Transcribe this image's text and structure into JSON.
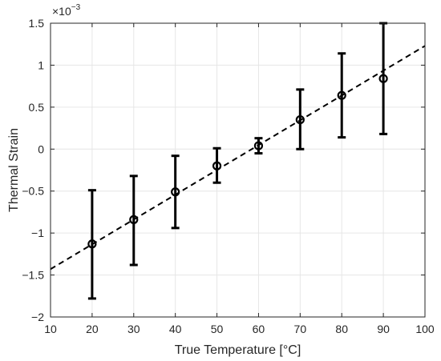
{
  "chart_data": {
    "type": "scatter",
    "xlabel": "True Temperature [°C]",
    "ylabel": "Thermal Strain",
    "y_exponent_label": {
      "base": "×10",
      "power": "−3"
    },
    "xlim": [
      10,
      100
    ],
    "ylim": [
      -2,
      1.5
    ],
    "xticks": [
      10,
      20,
      30,
      40,
      50,
      60,
      70,
      80,
      90,
      100
    ],
    "yticks": [
      -2,
      -1.5,
      -1,
      -0.5,
      0,
      0.5,
      1,
      1.5
    ],
    "ytick_labels": [
      "−2",
      "−1.5",
      "−1",
      "−0.5",
      "0",
      "0.5",
      "1",
      "1.5"
    ],
    "grid": true,
    "series": [
      {
        "marker": "circle",
        "x": [
          20,
          30,
          40,
          50,
          60,
          70,
          80,
          90
        ],
        "y": [
          -1.13,
          -0.84,
          -0.51,
          -0.2,
          0.04,
          0.35,
          0.64,
          0.84
        ],
        "err_low": [
          -1.78,
          -1.38,
          -0.94,
          -0.4,
          -0.05,
          0.0,
          0.14,
          0.18
        ],
        "err_high": [
          -0.49,
          -0.32,
          -0.08,
          0.01,
          0.13,
          0.71,
          1.14,
          1.5
        ]
      }
    ],
    "fit_line": {
      "style": "dashed",
      "x": [
        10,
        100
      ],
      "y": [
        -1.43,
        1.23
      ]
    },
    "colors": {
      "marks": "#000000",
      "grid": "#e6e6e6",
      "axis": "#262626"
    }
  }
}
